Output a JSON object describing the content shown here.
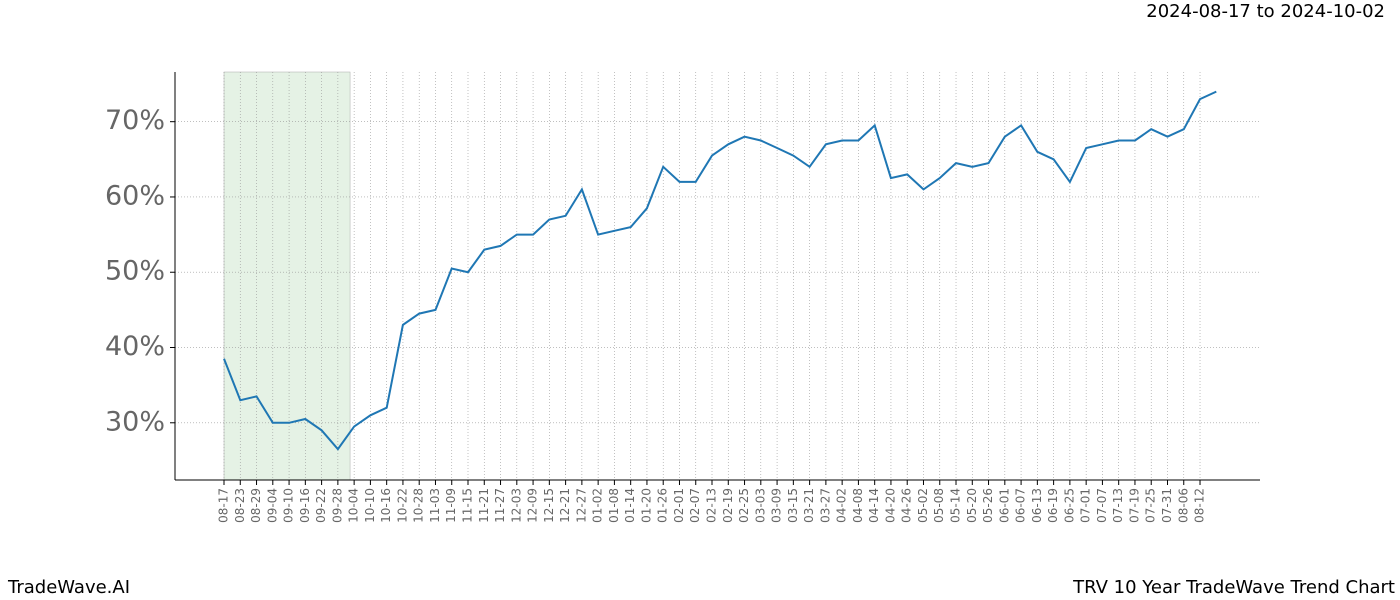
{
  "chart_data": {
    "type": "line",
    "subtitle": "2024-08-17 to 2024-10-02",
    "footer_left": "TradeWave.AI",
    "footer_right": "TRV 10 Year TradeWave Trend Chart",
    "categories": [
      "08-17",
      "08-23",
      "08-29",
      "09-04",
      "09-10",
      "09-16",
      "09-22",
      "09-28",
      "10-04",
      "10-10",
      "10-16",
      "10-22",
      "10-28",
      "11-03",
      "11-09",
      "11-15",
      "11-21",
      "11-27",
      "12-03",
      "12-09",
      "12-15",
      "12-21",
      "12-27",
      "01-02",
      "01-08",
      "01-14",
      "01-20",
      "01-26",
      "02-01",
      "02-07",
      "02-13",
      "02-19",
      "02-25",
      "03-03",
      "03-09",
      "03-15",
      "03-21",
      "03-27",
      "04-02",
      "04-08",
      "04-14",
      "04-20",
      "04-26",
      "05-02",
      "05-08",
      "05-14",
      "05-20",
      "05-26",
      "06-01",
      "06-07",
      "06-13",
      "06-19",
      "06-25",
      "07-01",
      "07-07",
      "07-13",
      "07-19",
      "07-25",
      "07-31",
      "08-06",
      "08-12",
      null
    ],
    "values": [
      38.5,
      33,
      33.5,
      30,
      30,
      30.5,
      29,
      26.5,
      29.5,
      31,
      32,
      43,
      44.5,
      45,
      50.5,
      50,
      53,
      53.5,
      55,
      55,
      57,
      57.5,
      61,
      55,
      55.5,
      56,
      58.5,
      64,
      62,
      62,
      65.5,
      67,
      68,
      67.5,
      66.5,
      65.5,
      64,
      67,
      67.5,
      67.5,
      69.5,
      62.5,
      63,
      61,
      62.5,
      64.5,
      64,
      64.5,
      68,
      69.5,
      66,
      65,
      62,
      66.5,
      67,
      67.5,
      67.5,
      69,
      68,
      69,
      73,
      74
    ],
    "color": "#1f77b4",
    "highlight_span": [
      0,
      7.75
    ],
    "highlight_color": "#e5f2e5",
    "ylim": [
      22.4,
      76.6
    ],
    "yticks": [
      {
        "value": 30,
        "label": "30%"
      },
      {
        "value": 40,
        "label": "40%"
      },
      {
        "value": 50,
        "label": "50%"
      },
      {
        "value": 60,
        "label": "60%"
      },
      {
        "value": 70,
        "label": "70%"
      }
    ],
    "grid": true
  }
}
